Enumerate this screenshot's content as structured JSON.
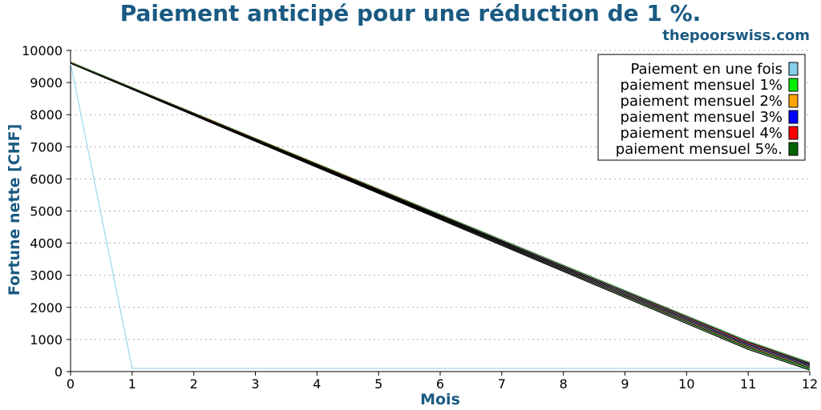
{
  "chart_data": {
    "type": "line",
    "title": "Paiement anticipé pour une réduction de 1 %.",
    "watermark": "thepoorswiss.com",
    "xlabel": "Mois",
    "ylabel": "Fortune nette [CHF]",
    "xlim": [
      0,
      12
    ],
    "ylim": [
      0,
      10000
    ],
    "x_ticks": [
      0,
      1,
      2,
      3,
      4,
      5,
      6,
      7,
      8,
      9,
      10,
      11,
      12
    ],
    "y_ticks": [
      0,
      1000,
      2000,
      3000,
      4000,
      5000,
      6000,
      7000,
      8000,
      9000,
      10000
    ],
    "grid": true,
    "legend_position": "top-right",
    "x": [
      0,
      1,
      2,
      3,
      4,
      5,
      6,
      7,
      8,
      9,
      10,
      11,
      12
    ],
    "series": [
      {
        "name": "Paiement en une fois",
        "color": "#87ceeb",
        "values": [
          9600,
          100,
          100,
          100,
          100,
          100,
          100,
          100,
          100,
          100,
          100,
          100,
          100
        ]
      },
      {
        "name": "paiement mensuel 1%",
        "color": "#00ee00",
        "values": [
          9600,
          8790,
          7980,
          7170,
          6360,
          5550,
          4740,
          3930,
          3120,
          2310,
          1500,
          690,
          50
        ]
      },
      {
        "name": "paiement mensuel 2%",
        "color": "#ffa500",
        "values": [
          9600,
          8795,
          7990,
          7185,
          6380,
          5575,
          4770,
          3965,
          3160,
          2355,
          1550,
          745,
          110
        ]
      },
      {
        "name": "paiement mensuel 3%",
        "color": "#0000ff",
        "values": [
          9600,
          8800,
          8000,
          7200,
          6400,
          5600,
          4800,
          4000,
          3200,
          2400,
          1600,
          800,
          160
        ]
      },
      {
        "name": "paiement mensuel 4%",
        "color": "#ff0000",
        "values": [
          9600,
          8805,
          8010,
          7215,
          6420,
          5625,
          4830,
          4035,
          3240,
          2445,
          1650,
          855,
          210
        ]
      },
      {
        "name": "paiement mensuel 5%.",
        "color": "#006400",
        "values": [
          9600,
          8810,
          8020,
          7230,
          6440,
          5650,
          4860,
          4070,
          3280,
          2490,
          1700,
          910,
          250
        ]
      }
    ]
  }
}
